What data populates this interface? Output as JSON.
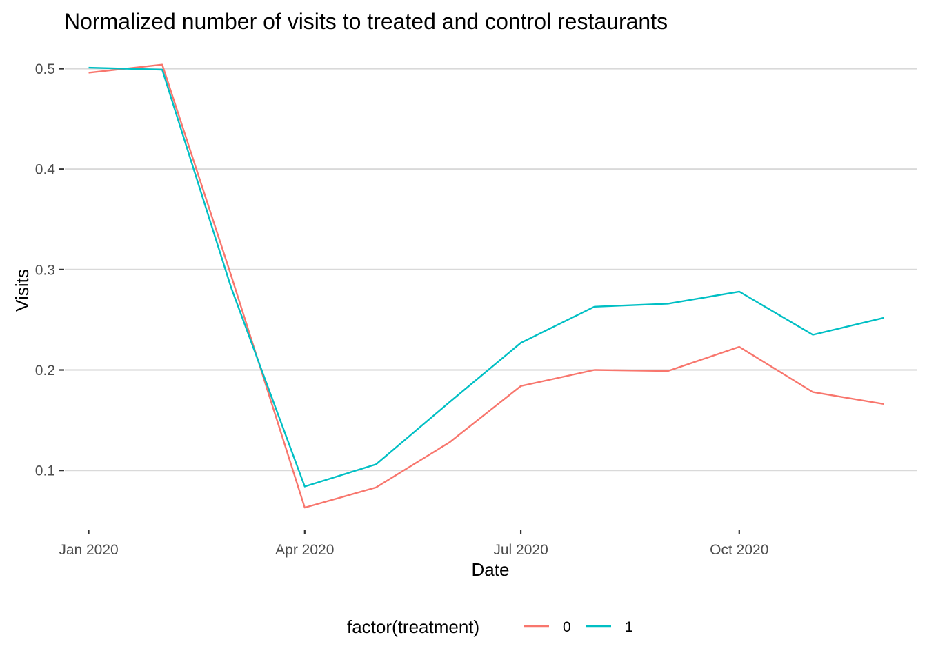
{
  "chart_data": {
    "type": "line",
    "title": "Normalized number of visits to treated and control restaurants",
    "xlabel": "Date",
    "ylabel": "Visits",
    "x": [
      "2020-01-01",
      "2020-02-01",
      "2020-03-01",
      "2020-04-01",
      "2020-05-01",
      "2020-06-01",
      "2020-07-01",
      "2020-08-01",
      "2020-09-01",
      "2020-10-01",
      "2020-11-01",
      "2020-12-01"
    ],
    "x_ticks": [
      {
        "date": "2020-01-01",
        "label": "Jan 2020"
      },
      {
        "date": "2020-04-01",
        "label": "Apr 2020"
      },
      {
        "date": "2020-07-01",
        "label": "Jul 2020"
      },
      {
        "date": "2020-10-01",
        "label": "Oct 2020"
      }
    ],
    "y_ticks": [
      0.1,
      0.2,
      0.3,
      0.4,
      0.5
    ],
    "y_tick_labels": [
      "0.1",
      "0.2",
      "0.3",
      "0.4",
      "0.5"
    ],
    "xlim": [
      "2019-12-15",
      "2020-12-15"
    ],
    "ylim": [
      0.05,
      0.51
    ],
    "grid": "horizontal major lines",
    "legend": {
      "title": "factor(treatment)",
      "position": "bottom"
    },
    "series": [
      {
        "name": "0",
        "color": "#F8766D",
        "values": [
          0.496,
          0.504,
          0.294,
          0.063,
          0.083,
          0.128,
          0.184,
          0.2,
          0.199,
          0.223,
          0.178,
          0.166
        ]
      },
      {
        "name": "1",
        "color": "#00BFC4",
        "values": [
          0.501,
          0.499,
          0.282,
          0.084,
          0.106,
          0.168,
          0.227,
          0.263,
          0.266,
          0.278,
          0.235,
          0.252
        ]
      }
    ]
  }
}
